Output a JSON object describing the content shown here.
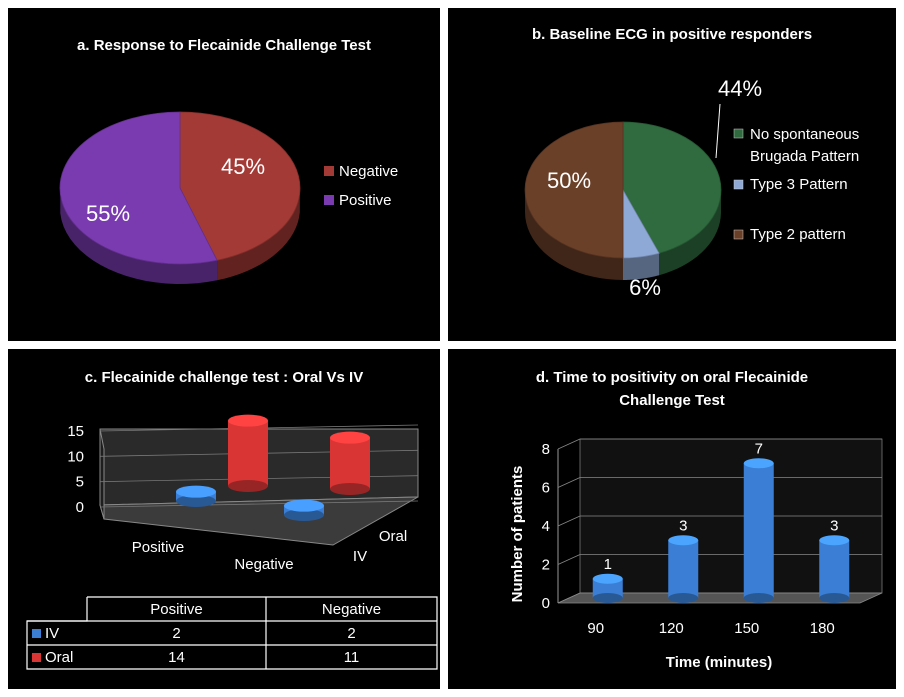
{
  "chart_data": [
    {
      "type": "pie",
      "title": "a. Response to Flecainide Challenge Test",
      "slices": [
        {
          "label": "Negative",
          "value": 45,
          "display": "45%",
          "color": "#a33a36"
        },
        {
          "label": "Positive",
          "value": 55,
          "display": "55%",
          "color": "#7a3bb0"
        }
      ],
      "legend": "right"
    },
    {
      "type": "pie",
      "title": "b. Baseline ECG in positive responders",
      "slices": [
        {
          "label": "No spontaneous Brugada Pattern",
          "value": 44,
          "display": "44%",
          "color": "#2f6b3f"
        },
        {
          "label": "Type 3 Pattern",
          "value": 6,
          "display": "6%",
          "color": "#8fa9d6"
        },
        {
          "label": "Type 2 pattern",
          "value": 50,
          "display": "50%",
          "color": "#6b4029"
        }
      ],
      "legend": "right"
    },
    {
      "type": "bar",
      "title": "c. Flecainide challenge test : Oral Vs IV",
      "categories": [
        "Positive",
        "Negative"
      ],
      "series": [
        {
          "name": "IV",
          "values": [
            2,
            2
          ],
          "color": "#3a7fd5"
        },
        {
          "name": "Oral",
          "values": [
            14,
            11
          ],
          "color": "#d93535"
        }
      ],
      "yticks": [
        "0",
        "5",
        "10",
        "15"
      ],
      "ylim": [
        0,
        15
      ],
      "depth_labels": [
        "IV",
        "Oral"
      ],
      "table": {
        "headers": [
          "Positive",
          "Negative"
        ],
        "rows": [
          {
            "label": "IV",
            "values": [
              "2",
              "2"
            ]
          },
          {
            "label": "Oral",
            "values": [
              "14",
              "11"
            ]
          }
        ]
      }
    },
    {
      "type": "bar",
      "title": "d. Time to positivity on oral Flecainide Challenge Test",
      "title_lines": [
        "d. Time to positivity on oral Flecainide",
        "Challenge Test"
      ],
      "categories": [
        "90",
        "120",
        "150",
        "180"
      ],
      "values": [
        1,
        3,
        7,
        3
      ],
      "xlabel": "Time (minutes)",
      "ylabel": "Number of patients",
      "yticks": [
        "0",
        "2",
        "4",
        "6",
        "8"
      ],
      "ylim": [
        0,
        8
      ],
      "grid": true,
      "color": "#3a7fd5"
    }
  ]
}
